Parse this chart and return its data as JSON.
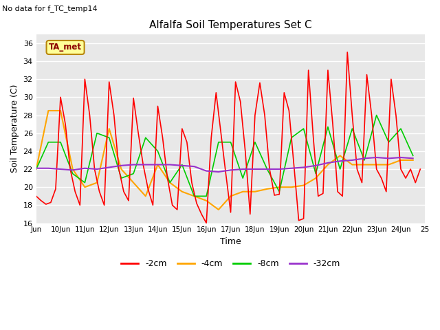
{
  "title": "Alfalfa Soil Temperatures Set C",
  "xlabel": "Time",
  "ylabel": "Soil Temperature (C)",
  "note": "No data for f_TC_temp14",
  "legend_label": "TA_met",
  "ylim": [
    16,
    37
  ],
  "yticks": [
    16,
    18,
    20,
    22,
    24,
    26,
    28,
    30,
    32,
    34,
    36
  ],
  "xlim": [
    9,
    25
  ],
  "xtick_labels": [
    "Jun",
    "10Jun",
    "11Jun",
    "12Jun",
    "13Jun",
    "14Jun",
    "15Jun",
    "16Jun",
    "17Jun",
    "18Jun",
    "19Jun",
    "20Jun",
    "21Jun",
    "22Jun",
    "23Jun",
    "24Jun",
    "25"
  ],
  "xtick_positions": [
    9,
    10,
    11,
    12,
    13,
    14,
    15,
    16,
    17,
    18,
    19,
    20,
    21,
    22,
    23,
    24,
    25
  ],
  "color_2cm": "#ff0000",
  "color_4cm": "#ffa500",
  "color_8cm": "#00cc00",
  "color_32cm": "#9932cc",
  "plot_bg_color": "#e8e8e8",
  "fig_bg_color": "#ffffff",
  "grid_color": "#ffffff",
  "label_2cm": "-2cm",
  "label_4cm": "-4cm",
  "label_8cm": "-8cm",
  "label_32cm": "-32cm",
  "legend_box_facecolor": "#ffff99",
  "legend_box_edgecolor": "#b8860b",
  "legend_text_color": "#8b0000",
  "t_2cm": [
    9.0,
    9.2,
    9.4,
    9.6,
    9.8,
    10.0,
    10.2,
    10.4,
    10.6,
    10.8,
    11.0,
    11.2,
    11.4,
    11.6,
    11.8,
    12.0,
    12.2,
    12.4,
    12.6,
    12.8,
    13.0,
    13.2,
    13.4,
    13.6,
    13.8,
    14.0,
    14.2,
    14.4,
    14.6,
    14.8,
    15.0,
    15.2,
    15.4,
    15.6,
    15.8,
    16.0,
    16.2,
    16.4,
    16.6,
    16.8,
    17.0,
    17.2,
    17.4,
    17.6,
    17.8,
    18.0,
    18.2,
    18.4,
    18.6,
    18.8,
    19.0,
    19.2,
    19.4,
    19.6,
    19.8,
    20.0,
    20.2,
    20.4,
    20.6,
    20.8,
    21.0,
    21.2,
    21.4,
    21.6,
    21.8,
    22.0,
    22.2,
    22.4,
    22.6,
    22.8,
    23.0,
    23.2,
    23.4,
    23.6,
    23.8,
    24.0,
    24.2,
    24.4,
    24.6,
    24.8
  ],
  "v_2cm": [
    19.0,
    18.5,
    18.1,
    18.3,
    19.8,
    30.0,
    27.0,
    22.0,
    19.5,
    18.0,
    32.0,
    28.0,
    22.0,
    19.5,
    18.0,
    31.7,
    28.0,
    22.0,
    19.5,
    18.5,
    29.9,
    26.0,
    22.5,
    19.8,
    18.0,
    29.0,
    25.5,
    21.0,
    18.0,
    17.5,
    26.5,
    25.0,
    20.5,
    18.2,
    17.0,
    16.0,
    25.5,
    30.5,
    26.0,
    21.5,
    17.2,
    31.7,
    29.5,
    24.0,
    17.0,
    28.0,
    31.6,
    28.0,
    22.0,
    19.1,
    19.2,
    30.5,
    28.5,
    22.5,
    16.3,
    16.5,
    33.0,
    25.5,
    19.0,
    19.3,
    33.0,
    27.0,
    19.5,
    19.0,
    35.0,
    28.0,
    22.0,
    20.5,
    32.5,
    28.0,
    22.0,
    21.0,
    19.5,
    32.0,
    28.0,
    22.0,
    21.0,
    22.0,
    20.5,
    22.0
  ],
  "t_4cm": [
    9.0,
    9.5,
    10.0,
    10.5,
    11.0,
    11.5,
    12.0,
    12.5,
    13.0,
    13.5,
    14.0,
    14.5,
    15.0,
    15.5,
    16.0,
    16.5,
    17.0,
    17.5,
    18.0,
    18.5,
    19.0,
    19.5,
    20.0,
    20.5,
    21.0,
    21.5,
    22.0,
    22.5,
    23.0,
    23.5,
    24.0,
    24.5
  ],
  "v_4cm": [
    22.0,
    28.5,
    28.5,
    22.0,
    20.0,
    20.5,
    26.5,
    22.0,
    20.5,
    19.0,
    22.5,
    20.5,
    19.5,
    19.0,
    18.5,
    17.5,
    19.0,
    19.5,
    19.5,
    19.8,
    20.0,
    20.0,
    20.2,
    21.0,
    22.5,
    23.5,
    22.5,
    22.5,
    22.5,
    22.5,
    23.0,
    23.0
  ],
  "t_8cm": [
    9.0,
    9.5,
    10.0,
    10.5,
    11.0,
    11.5,
    12.0,
    12.5,
    13.0,
    13.5,
    14.0,
    14.5,
    15.0,
    15.5,
    16.0,
    16.5,
    17.0,
    17.5,
    18.0,
    18.5,
    19.0,
    19.5,
    20.0,
    20.5,
    21.0,
    21.5,
    22.0,
    22.5,
    23.0,
    23.5,
    24.0,
    24.5
  ],
  "v_8cm": [
    22.0,
    25.0,
    25.0,
    21.5,
    20.5,
    26.0,
    25.5,
    21.0,
    21.5,
    25.5,
    24.0,
    20.5,
    22.5,
    19.0,
    19.0,
    25.0,
    25.0,
    21.0,
    25.0,
    22.0,
    19.5,
    25.5,
    26.5,
    21.5,
    26.7,
    22.0,
    26.5,
    23.0,
    28.0,
    25.0,
    26.5,
    23.5
  ],
  "t_32cm": [
    9.0,
    9.5,
    10.0,
    10.5,
    11.0,
    11.5,
    12.0,
    12.5,
    13.0,
    13.5,
    14.0,
    14.5,
    15.0,
    15.5,
    16.0,
    16.5,
    17.0,
    17.5,
    18.0,
    18.5,
    19.0,
    19.5,
    20.0,
    20.5,
    21.0,
    21.5,
    22.0,
    22.5,
    23.0,
    23.5,
    24.0,
    24.5
  ],
  "v_32cm": [
    22.1,
    22.1,
    22.0,
    21.9,
    22.1,
    22.0,
    22.2,
    22.4,
    22.5,
    22.5,
    22.5,
    22.5,
    22.4,
    22.3,
    21.8,
    21.7,
    21.9,
    22.0,
    22.0,
    22.0,
    22.0,
    22.1,
    22.2,
    22.4,
    22.7,
    22.9,
    23.0,
    23.2,
    23.3,
    23.2,
    23.3,
    23.2
  ]
}
